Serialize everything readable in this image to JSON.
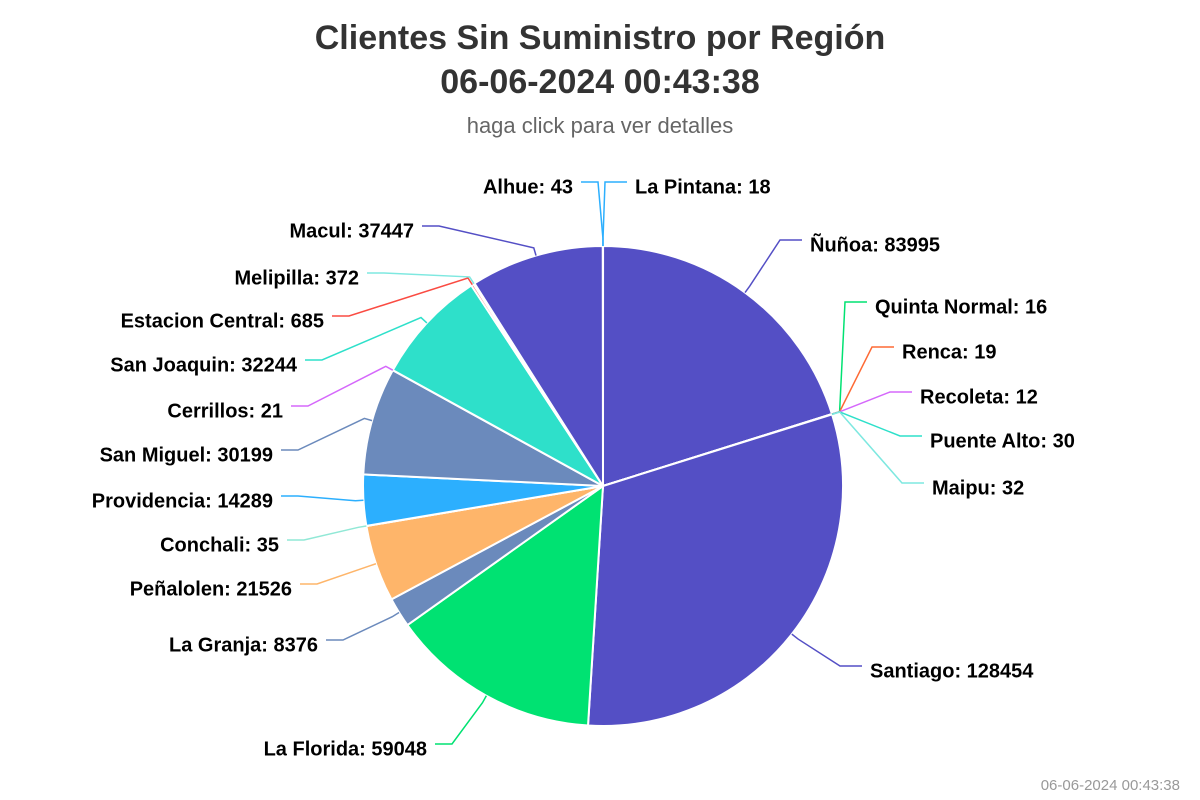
{
  "chart_data": {
    "type": "pie",
    "title_line1": "Clientes Sin Suministro por Región",
    "title_line2": "06-06-2024 00:43:38",
    "subtitle": "haga click para ver detalles",
    "credit": "06-06-2024 00:43:38",
    "slices": [
      {
        "name": "La Pintana",
        "value": 18,
        "color": "#2caffe"
      },
      {
        "name": "Ñuñoa",
        "value": 83995,
        "color": "#544fc5"
      },
      {
        "name": "Quinta Normal",
        "value": 16,
        "color": "#00e272"
      },
      {
        "name": "Renca",
        "value": 19,
        "color": "#fe6a35"
      },
      {
        "name": "Recoleta",
        "value": 12,
        "color": "#d568fb"
      },
      {
        "name": "Puente Alto",
        "value": 30,
        "color": "#2ee0ca"
      },
      {
        "name": "Maipu",
        "value": 32,
        "color": "#7ee8e0"
      },
      {
        "name": "Santiago",
        "value": 128454,
        "color": "#544fc5"
      },
      {
        "name": "La Florida",
        "value": 59048,
        "color": "#00e272"
      },
      {
        "name": "La Granja",
        "value": 8376,
        "color": "#6b8abc"
      },
      {
        "name": "Peñalolen",
        "value": 21526,
        "color": "#feb56a"
      },
      {
        "name": "Conchali",
        "value": 35,
        "color": "#91e8d6"
      },
      {
        "name": "Providencia",
        "value": 14289,
        "color": "#2caffe"
      },
      {
        "name": "San Miguel",
        "value": 30199,
        "color": "#6b8abc"
      },
      {
        "name": "Cerrillos",
        "value": 21,
        "color": "#d568fb"
      },
      {
        "name": "San Joaquin",
        "value": 32244,
        "color": "#2ee0ca"
      },
      {
        "name": "Estacion Central",
        "value": 685,
        "color": "#fa4b42"
      },
      {
        "name": "Melipilla",
        "value": 372,
        "color": "#7ee8e0"
      },
      {
        "name": "Macul",
        "value": 37447,
        "color": "#544fc5"
      },
      {
        "name": "Alhue",
        "value": 43,
        "color": "#2caffe"
      }
    ]
  }
}
